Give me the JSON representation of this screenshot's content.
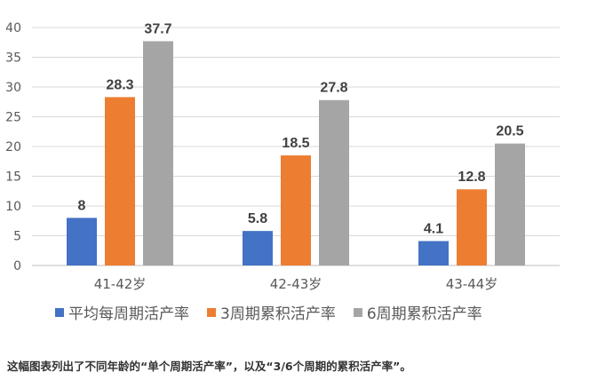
{
  "chart_data": {
    "type": "bar",
    "categories": [
      "41-42岁",
      "42-43岁",
      "43-44岁"
    ],
    "series": [
      {
        "name": "平均每周期活产率",
        "color": "#4472c4",
        "values": [
          8,
          5.8,
          4.1
        ],
        "labels": [
          "8",
          "5.8",
          "4.1"
        ]
      },
      {
        "name": "3周期累积活产率",
        "color": "#ed7d31",
        "values": [
          28.3,
          18.5,
          12.8
        ],
        "labels": [
          "28.3",
          "18.5",
          "12.8"
        ]
      },
      {
        "name": "6周期累积活产率",
        "color": "#a5a5a5",
        "values": [
          37.7,
          27.8,
          20.5
        ],
        "labels": [
          "37.7",
          "27.8",
          "20.5"
        ]
      }
    ],
    "ylim": [
      0,
      40
    ],
    "yticks": [
      "0",
      "5",
      "10",
      "15",
      "20",
      "25",
      "30",
      "35",
      "40"
    ],
    "grid": true,
    "legend_position": "bottom"
  },
  "caption": "这幅图表列出了不同年龄的“单个周期活产率”，以及“3/6个周期的累积活产率”。"
}
